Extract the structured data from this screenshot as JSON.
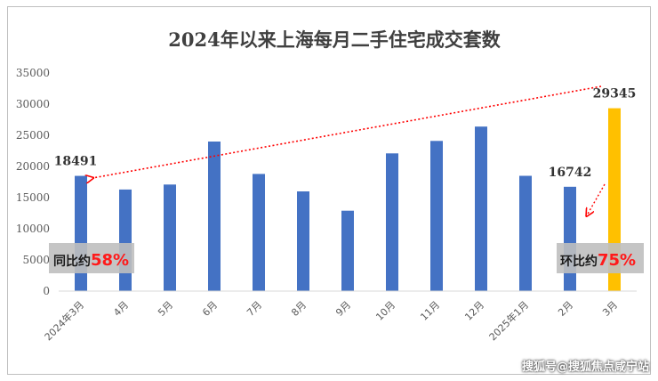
{
  "chart_data": {
    "type": "bar",
    "title": "2024年以来上海每月二手住宅成交套数",
    "categories": [
      "2024年3月",
      "4月",
      "5月",
      "6月",
      "7月",
      "8月",
      "9月",
      "10月",
      "11月",
      "12月",
      "2025年1月",
      "2月",
      "3月"
    ],
    "values": [
      18491,
      16300,
      17100,
      24000,
      18800,
      16000,
      12900,
      22100,
      24100,
      26400,
      18500,
      16742,
      29345
    ],
    "ylim": [
      0,
      35000
    ],
    "yticks": [
      0,
      5000,
      10000,
      15000,
      20000,
      25000,
      30000,
      35000
    ],
    "bar_color": "#4472c4",
    "highlight_color": "#ffc000",
    "highlight_index": 12,
    "data_labels": [
      {
        "index": 0,
        "text": "18491"
      },
      {
        "index": 11,
        "text": "16742"
      },
      {
        "index": 12,
        "text": "29345"
      }
    ],
    "annotations": {
      "yoy": {
        "label": "同比约",
        "value": "58%"
      },
      "mom": {
        "label": "环比约",
        "value": "75%"
      }
    },
    "grid": false,
    "arrow_color": "#ff0000"
  },
  "watermark": "搜狐号@搜狐焦点咸宁站"
}
